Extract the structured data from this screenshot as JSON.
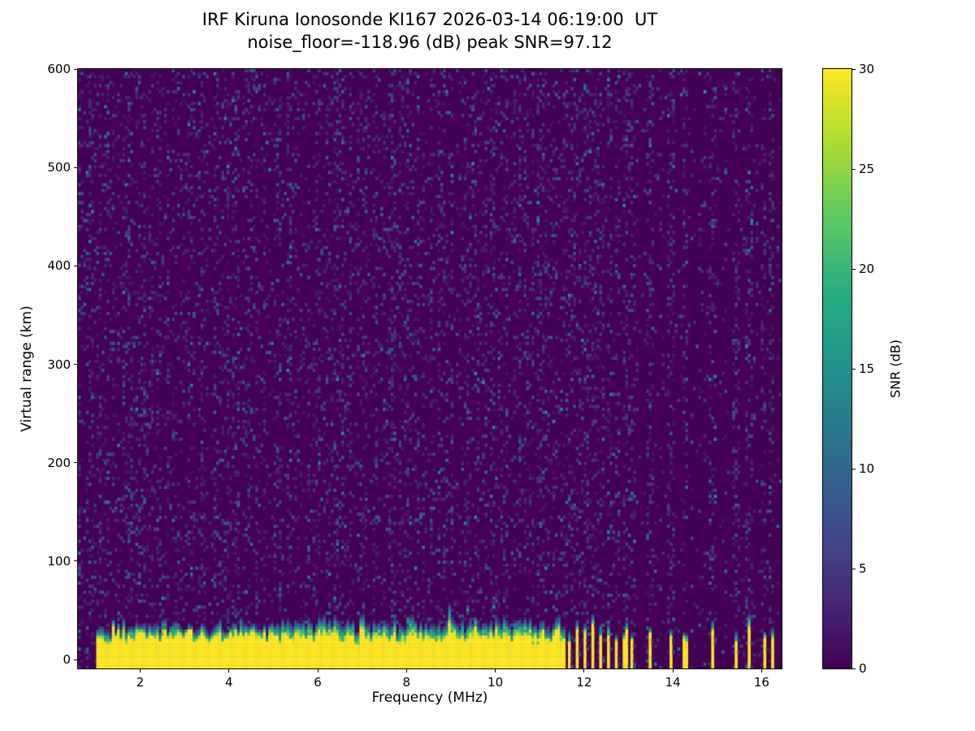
{
  "chart_data": {
    "type": "heatmap",
    "title": "IRF Kiruna Ionosonde KI167 2026-03-14 06:19:00  UT",
    "subtitle": "noise_floor=-118.96 (dB) peak SNR=97.12",
    "xlabel": "Frequency (MHz)",
    "ylabel": "Virtual range (km)",
    "xlim": [
      0.6,
      16.45
    ],
    "ylim": [
      -9,
      600
    ],
    "x_ticks": [
      2,
      4,
      6,
      8,
      10,
      12,
      14,
      16
    ],
    "y_ticks": [
      0,
      100,
      200,
      300,
      400,
      500,
      600
    ],
    "grid": false,
    "colormap": "viridis",
    "colormap_stops": [
      [
        0.0,
        "#440154"
      ],
      [
        0.125,
        "#472c7a"
      ],
      [
        0.25,
        "#3b518b"
      ],
      [
        0.375,
        "#2c718e"
      ],
      [
        0.5,
        "#21918c"
      ],
      [
        0.625,
        "#27ad81"
      ],
      [
        0.75,
        "#5cc863"
      ],
      [
        0.875,
        "#aadc32"
      ],
      [
        1.0,
        "#fde725"
      ]
    ],
    "colorbar": {
      "label": "SNR (dB)",
      "ticks": [
        0,
        5,
        10,
        15,
        20,
        25,
        30
      ],
      "range": [
        0,
        30
      ],
      "position": "right"
    },
    "noise_floor_db": -118.96,
    "peak_snr_db": 97.12,
    "sweep": {
      "freq_start_mhz": 1.0,
      "freq_end_mhz": 16.3,
      "continuous_until_mhz": 11.6,
      "stripe_freqs_mhz": [
        11.66,
        11.84,
        12.02,
        12.2,
        12.38,
        12.56,
        12.74,
        12.92,
        13.08,
        13.48,
        13.95,
        14.27,
        14.9,
        15.42,
        15.72,
        16.05,
        16.25
      ],
      "ground_echo": {
        "solid_top_km": 22,
        "fade_top_km": 40,
        "variation_km": 12,
        "value_db": 30
      },
      "background_value_db": 0
    },
    "render": {
      "cols": 270,
      "rows": 200,
      "speckle_probability": 0.16,
      "speckle_max_db": 10,
      "seed": 167
    }
  }
}
